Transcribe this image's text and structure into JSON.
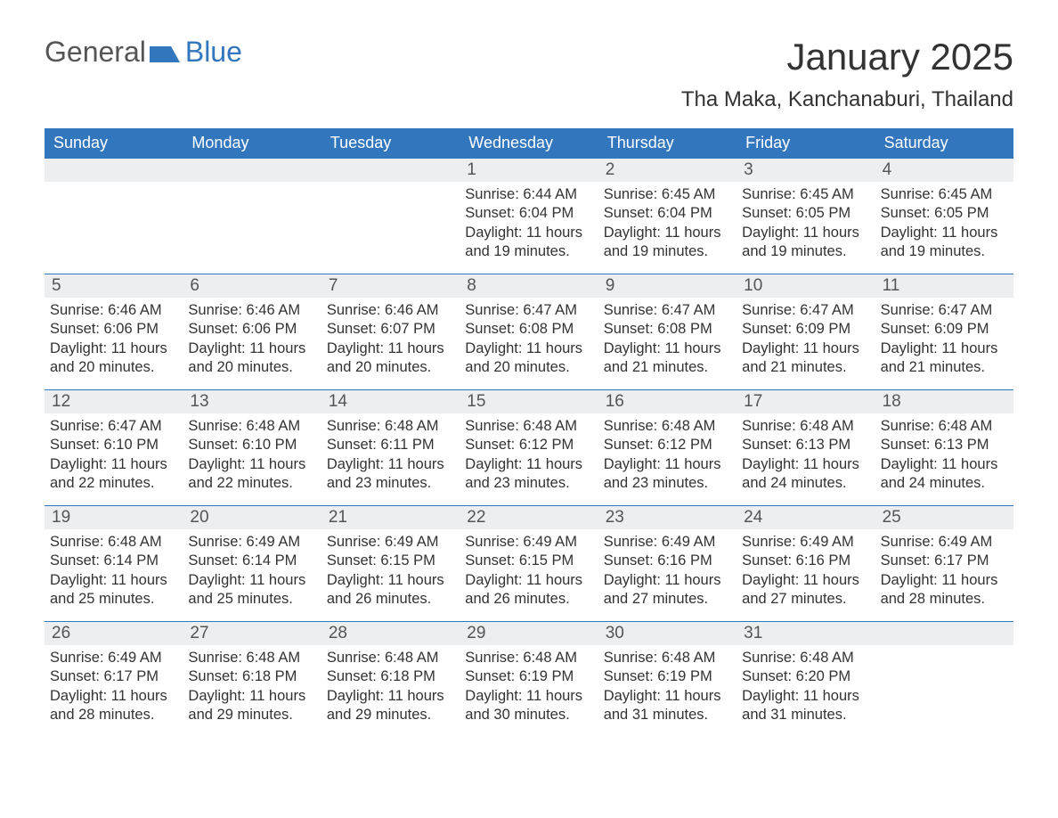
{
  "logo": {
    "text1": "General",
    "text2": "Blue",
    "accent_color": "#3277be"
  },
  "month_title": "January 2025",
  "location": "Tha Maka, Kanchanaburi, Thailand",
  "weekdays": [
    "Sunday",
    "Monday",
    "Tuesday",
    "Wednesday",
    "Thursday",
    "Friday",
    "Saturday"
  ],
  "header_bg": "#3277be",
  "header_fg": "#ffffff",
  "daynum_bg": "#eceeef",
  "cell_border_color": "#3277be",
  "days": [
    {
      "n": "",
      "sunrise": "",
      "sunset": "",
      "daylight": ""
    },
    {
      "n": "",
      "sunrise": "",
      "sunset": "",
      "daylight": ""
    },
    {
      "n": "",
      "sunrise": "",
      "sunset": "",
      "daylight": ""
    },
    {
      "n": "1",
      "sunrise": "Sunrise: 6:44 AM",
      "sunset": "Sunset: 6:04 PM",
      "daylight": "Daylight: 11 hours and 19 minutes."
    },
    {
      "n": "2",
      "sunrise": "Sunrise: 6:45 AM",
      "sunset": "Sunset: 6:04 PM",
      "daylight": "Daylight: 11 hours and 19 minutes."
    },
    {
      "n": "3",
      "sunrise": "Sunrise: 6:45 AM",
      "sunset": "Sunset: 6:05 PM",
      "daylight": "Daylight: 11 hours and 19 minutes."
    },
    {
      "n": "4",
      "sunrise": "Sunrise: 6:45 AM",
      "sunset": "Sunset: 6:05 PM",
      "daylight": "Daylight: 11 hours and 19 minutes."
    },
    {
      "n": "5",
      "sunrise": "Sunrise: 6:46 AM",
      "sunset": "Sunset: 6:06 PM",
      "daylight": "Daylight: 11 hours and 20 minutes."
    },
    {
      "n": "6",
      "sunrise": "Sunrise: 6:46 AM",
      "sunset": "Sunset: 6:06 PM",
      "daylight": "Daylight: 11 hours and 20 minutes."
    },
    {
      "n": "7",
      "sunrise": "Sunrise: 6:46 AM",
      "sunset": "Sunset: 6:07 PM",
      "daylight": "Daylight: 11 hours and 20 minutes."
    },
    {
      "n": "8",
      "sunrise": "Sunrise: 6:47 AM",
      "sunset": "Sunset: 6:08 PM",
      "daylight": "Daylight: 11 hours and 20 minutes."
    },
    {
      "n": "9",
      "sunrise": "Sunrise: 6:47 AM",
      "sunset": "Sunset: 6:08 PM",
      "daylight": "Daylight: 11 hours and 21 minutes."
    },
    {
      "n": "10",
      "sunrise": "Sunrise: 6:47 AM",
      "sunset": "Sunset: 6:09 PM",
      "daylight": "Daylight: 11 hours and 21 minutes."
    },
    {
      "n": "11",
      "sunrise": "Sunrise: 6:47 AM",
      "sunset": "Sunset: 6:09 PM",
      "daylight": "Daylight: 11 hours and 21 minutes."
    },
    {
      "n": "12",
      "sunrise": "Sunrise: 6:47 AM",
      "sunset": "Sunset: 6:10 PM",
      "daylight": "Daylight: 11 hours and 22 minutes."
    },
    {
      "n": "13",
      "sunrise": "Sunrise: 6:48 AM",
      "sunset": "Sunset: 6:10 PM",
      "daylight": "Daylight: 11 hours and 22 minutes."
    },
    {
      "n": "14",
      "sunrise": "Sunrise: 6:48 AM",
      "sunset": "Sunset: 6:11 PM",
      "daylight": "Daylight: 11 hours and 23 minutes."
    },
    {
      "n": "15",
      "sunrise": "Sunrise: 6:48 AM",
      "sunset": "Sunset: 6:12 PM",
      "daylight": "Daylight: 11 hours and 23 minutes."
    },
    {
      "n": "16",
      "sunrise": "Sunrise: 6:48 AM",
      "sunset": "Sunset: 6:12 PM",
      "daylight": "Daylight: 11 hours and 23 minutes."
    },
    {
      "n": "17",
      "sunrise": "Sunrise: 6:48 AM",
      "sunset": "Sunset: 6:13 PM",
      "daylight": "Daylight: 11 hours and 24 minutes."
    },
    {
      "n": "18",
      "sunrise": "Sunrise: 6:48 AM",
      "sunset": "Sunset: 6:13 PM",
      "daylight": "Daylight: 11 hours and 24 minutes."
    },
    {
      "n": "19",
      "sunrise": "Sunrise: 6:48 AM",
      "sunset": "Sunset: 6:14 PM",
      "daylight": "Daylight: 11 hours and 25 minutes."
    },
    {
      "n": "20",
      "sunrise": "Sunrise: 6:49 AM",
      "sunset": "Sunset: 6:14 PM",
      "daylight": "Daylight: 11 hours and 25 minutes."
    },
    {
      "n": "21",
      "sunrise": "Sunrise: 6:49 AM",
      "sunset": "Sunset: 6:15 PM",
      "daylight": "Daylight: 11 hours and 26 minutes."
    },
    {
      "n": "22",
      "sunrise": "Sunrise: 6:49 AM",
      "sunset": "Sunset: 6:15 PM",
      "daylight": "Daylight: 11 hours and 26 minutes."
    },
    {
      "n": "23",
      "sunrise": "Sunrise: 6:49 AM",
      "sunset": "Sunset: 6:16 PM",
      "daylight": "Daylight: 11 hours and 27 minutes."
    },
    {
      "n": "24",
      "sunrise": "Sunrise: 6:49 AM",
      "sunset": "Sunset: 6:16 PM",
      "daylight": "Daylight: 11 hours and 27 minutes."
    },
    {
      "n": "25",
      "sunrise": "Sunrise: 6:49 AM",
      "sunset": "Sunset: 6:17 PM",
      "daylight": "Daylight: 11 hours and 28 minutes."
    },
    {
      "n": "26",
      "sunrise": "Sunrise: 6:49 AM",
      "sunset": "Sunset: 6:17 PM",
      "daylight": "Daylight: 11 hours and 28 minutes."
    },
    {
      "n": "27",
      "sunrise": "Sunrise: 6:48 AM",
      "sunset": "Sunset: 6:18 PM",
      "daylight": "Daylight: 11 hours and 29 minutes."
    },
    {
      "n": "28",
      "sunrise": "Sunrise: 6:48 AM",
      "sunset": "Sunset: 6:18 PM",
      "daylight": "Daylight: 11 hours and 29 minutes."
    },
    {
      "n": "29",
      "sunrise": "Sunrise: 6:48 AM",
      "sunset": "Sunset: 6:19 PM",
      "daylight": "Daylight: 11 hours and 30 minutes."
    },
    {
      "n": "30",
      "sunrise": "Sunrise: 6:48 AM",
      "sunset": "Sunset: 6:19 PM",
      "daylight": "Daylight: 11 hours and 31 minutes."
    },
    {
      "n": "31",
      "sunrise": "Sunrise: 6:48 AM",
      "sunset": "Sunset: 6:20 PM",
      "daylight": "Daylight: 11 hours and 31 minutes."
    },
    {
      "n": "",
      "sunrise": "",
      "sunset": "",
      "daylight": ""
    }
  ]
}
